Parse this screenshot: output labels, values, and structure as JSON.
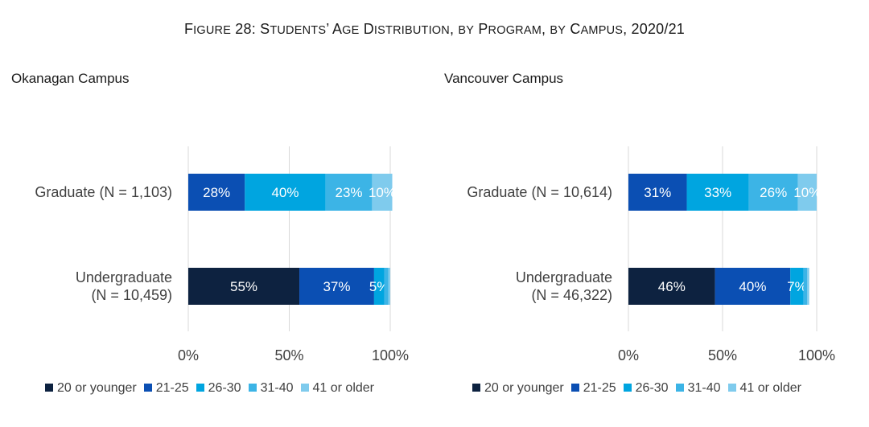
{
  "figure": {
    "title_prefix": "F",
    "title_words": [
      {
        "cap": "F",
        "rest": "IGURE"
      },
      {
        "cap": " 28: S",
        "rest": "TUDENTS"
      },
      {
        "cap": "’ A",
        "rest": "GE"
      },
      {
        "cap": " D",
        "rest": "ISTRIBUTION"
      },
      {
        "cap": ", ",
        "rest": "BY"
      },
      {
        "cap": " P",
        "rest": "ROGRAM"
      },
      {
        "cap": ", ",
        "rest": "BY"
      },
      {
        "cap": " C",
        "rest": "AMPUS"
      },
      {
        "cap": ", 2020/21",
        "rest": ""
      }
    ]
  },
  "legend": [
    {
      "label": "20 or younger",
      "color": "#0d2240"
    },
    {
      "label": "21-25",
      "color": "#0b4fb3"
    },
    {
      "label": "26-30",
      "color": "#00a5e0"
    },
    {
      "label": "31-40",
      "color": "#3cb4e6"
    },
    {
      "label": "41 or older",
      "color": "#7fcbed"
    }
  ],
  "chart_data": [
    {
      "type": "bar",
      "orientation": "horizontal",
      "stacked": true,
      "title": "Okanagan Campus",
      "categories": [
        "Graduate (N = 1,103)",
        "Undergraduate (N = 10,459)"
      ],
      "category_lines": [
        [
          "Graduate (N = 1,103)"
        ],
        [
          "Undergraduate",
          "(N = 10,459)"
        ]
      ],
      "series": [
        {
          "name": "20 or younger",
          "values": [
            0,
            55
          ],
          "labels": [
            "",
            "55%"
          ]
        },
        {
          "name": "21-25",
          "values": [
            28,
            37
          ],
          "labels": [
            "28%",
            "37%"
          ]
        },
        {
          "name": "26-30",
          "values": [
            40,
            5
          ],
          "labels": [
            "40%",
            "5%"
          ]
        },
        {
          "name": "31-40",
          "values": [
            23,
            2
          ],
          "labels": [
            "23%",
            ""
          ]
        },
        {
          "name": "41 or older",
          "values": [
            10,
            1
          ],
          "labels": [
            "10%",
            ""
          ]
        }
      ],
      "xlim": [
        0,
        100
      ],
      "xticks": [
        0,
        50,
        100
      ],
      "xtick_labels": [
        "0%",
        "50%",
        "100%"
      ],
      "grid": true,
      "legend_position": "bottom"
    },
    {
      "type": "bar",
      "orientation": "horizontal",
      "stacked": true,
      "title": "Vancouver Campus",
      "categories": [
        "Graduate (N = 10,614)",
        "Undergraduate (N = 46,322)"
      ],
      "category_lines": [
        [
          "Graduate (N = 10,614)"
        ],
        [
          "Undergraduate",
          "(N = 46,322)"
        ]
      ],
      "series": [
        {
          "name": "20 or younger",
          "values": [
            0,
            46
          ],
          "labels": [
            "",
            "46%"
          ]
        },
        {
          "name": "21-25",
          "values": [
            31,
            40
          ],
          "labels": [
            "31%",
            "40%"
          ]
        },
        {
          "name": "26-30",
          "values": [
            33,
            7
          ],
          "labels": [
            "33%",
            "7%"
          ]
        },
        {
          "name": "31-40",
          "values": [
            26,
            2
          ],
          "labels": [
            "26%",
            ""
          ]
        },
        {
          "name": "41 or older",
          "values": [
            10,
            1
          ],
          "labels": [
            "10%",
            ""
          ]
        }
      ],
      "xlim": [
        0,
        100
      ],
      "xticks": [
        0,
        50,
        100
      ],
      "xtick_labels": [
        "0%",
        "50%",
        "100%"
      ],
      "grid": true,
      "legend_position": "bottom"
    }
  ]
}
